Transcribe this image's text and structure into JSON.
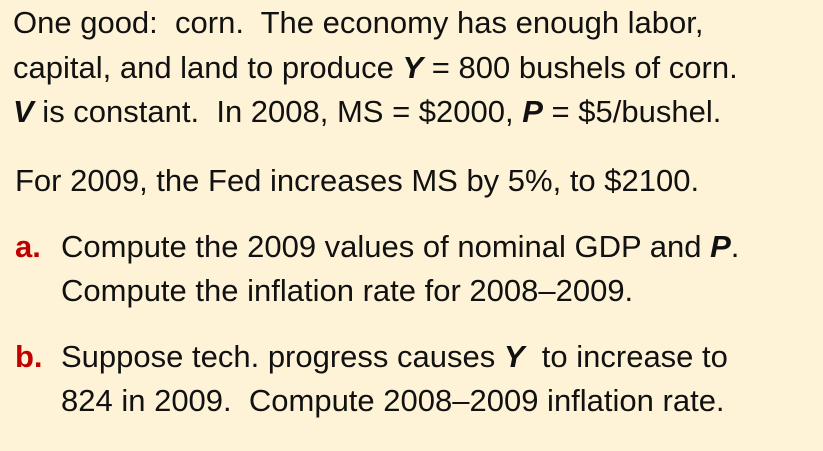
{
  "colors": {
    "background": "#FEF3D6",
    "text": "#111111",
    "marker": "#C00000"
  },
  "intro": {
    "line1": "One good:  corn.  The economy has enough labor,",
    "line2_before": "capital, and land to produce ",
    "line2_var": "Y",
    "line2_after": " = 800 bushels of corn.",
    "line3_var1": "V",
    "line3_mid": " is constant.  In 2008, MS = $2000, ",
    "line3_var2": "P",
    "line3_after": " = $5/bushel."
  },
  "fed": {
    "text": "For 2009, the Fed increases MS by 5%, to $2100."
  },
  "items": [
    {
      "marker": "a.",
      "line1_before": "Compute the 2009 values of nominal GDP and ",
      "line1_var": "P",
      "line1_after": ".",
      "line2": "Compute the inflation rate for 2008–2009."
    },
    {
      "marker": "b.",
      "line1_before": "Suppose tech. progress causes ",
      "line1_var": "Y",
      "line1_after": "  to increase to",
      "line2": "824 in 2009.  Compute 2008–2009 inflation rate."
    }
  ]
}
